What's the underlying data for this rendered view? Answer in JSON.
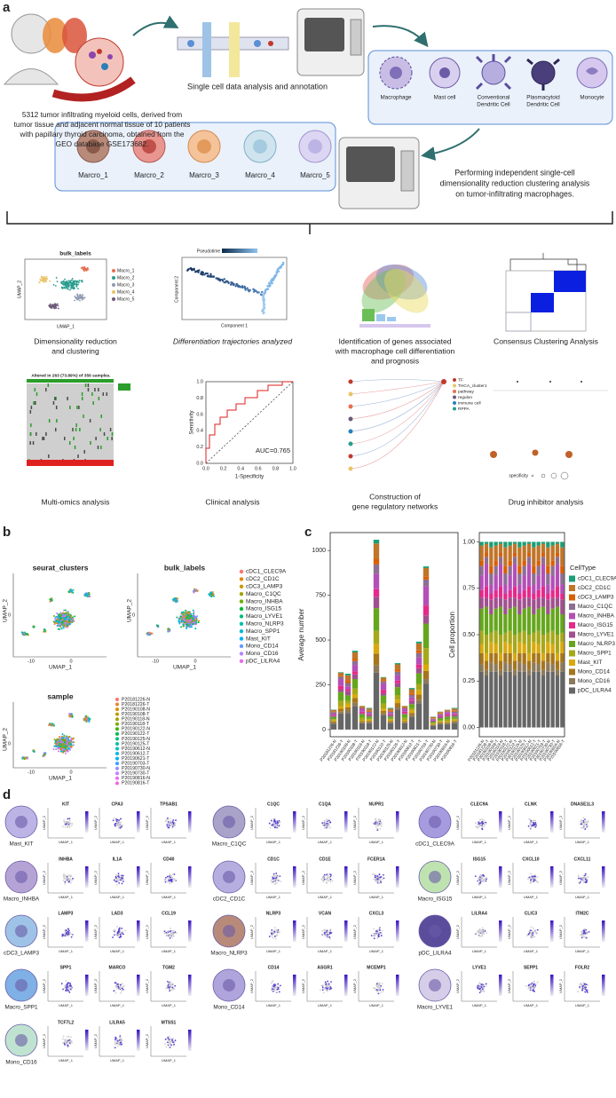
{
  "panel_labels": {
    "a": "a",
    "b": "b",
    "c": "c",
    "d": "d"
  },
  "workflow": {
    "source_text": [
      "5312 tumor infiltrating myeloid cells, derived from",
      "tumor tissue and adjacent normal tissue of 10 patients",
      "with papillary thyroid carcinoma, obtained from the",
      "GEO database GSE173682."
    ],
    "step1_caption": "Single cell data analysis and annotation",
    "cell_types": [
      [
        "Macrophage"
      ],
      [
        "Mast cell"
      ],
      [
        "Conventional",
        "Dendritic Cell"
      ],
      [
        "Plasmacytoid",
        "Dendritic Cell"
      ],
      [
        "Monocyte"
      ]
    ],
    "macro_clusters": [
      "Marcro_1",
      "Marcro_2",
      "Marcro_3",
      "Marcro_4",
      "Marcro_5"
    ],
    "step2_caption": [
      "Performing independent single-cell",
      "dimensionality reduction clustering analysis",
      "on tumor-infiltrating macrophages."
    ]
  },
  "analyses": {
    "captions": [
      [
        "Dimensionality reduction",
        "and clustering"
      ],
      [
        "Differentiation trajectories analyzed"
      ],
      [
        "Identification of genes associated",
        "with macrophage cell differentiation",
        "and prognosis"
      ],
      [
        "Consensus Clustering Analysis"
      ],
      [
        "Multi-omics analysis"
      ],
      [
        "Clinical analysis"
      ],
      [
        "Construction of",
        "gene regulatory networks"
      ],
      [
        "Drug inhibitor analysis"
      ]
    ],
    "umap_title": "bulk_labels",
    "umap_legend": [
      "Macro_1",
      "Macro_2",
      "Macro_3",
      "Macro_4",
      "Macro_5"
    ],
    "umap_x": "UMAP_1",
    "umap_y": "UMAP_2",
    "pseudotime": "Pseudotime",
    "component_x": "Component 1",
    "component_y": "Component 2",
    "oncoprint_title": "Altered in 263 (73.89%) of 356 samples.",
    "roc_auc": "AUC=0.765",
    "roc_x": "1-Specificity",
    "roc_y": "Sensitivity",
    "roc_ticks": [
      "0.0",
      "0.2",
      "0.4",
      "0.6",
      "0.8",
      "1.0"
    ],
    "network_legend": [
      "TF",
      "THCA_cluster1",
      "pathway",
      "regulon",
      "immune cell",
      "RPPA"
    ],
    "drug_legend": "specificity"
  },
  "panel_b": {
    "titles": [
      "seurat_clusters",
      "bulk_labels",
      "sample"
    ],
    "x_label": "UMAP_1",
    "y_label": "UMAP_2",
    "xticks": [
      "-10",
      "0"
    ],
    "yticks": [
      "0"
    ],
    "label_colors": [
      "#f8766d",
      "#e58700",
      "#c99800",
      "#a3a500",
      "#6bb100",
      "#00ba38",
      "#00bf7d",
      "#00c0af",
      "#00bcd8",
      "#00b0f6",
      "#619cff",
      "#b983ff",
      "#e76bf3"
    ],
    "sample_colors": [
      "#f8766d",
      "#ea8331",
      "#d89000",
      "#c09b00",
      "#a3a500",
      "#7cae00",
      "#39b600",
      "#00bb4e",
      "#00bf7d",
      "#00c1a3",
      "#00bfc4",
      "#00bae0",
      "#00b0f6",
      "#35a2ff",
      "#9590ff",
      "#c77cff",
      "#e76bf3",
      "#fa62db"
    ]
  },
  "chart_data": [
    {
      "type": "bar",
      "stacked": true,
      "ylabel": "Average number",
      "categories": [
        "P20181226-N",
        "P20181226-T",
        "P20190108-N",
        "P20190108-T",
        "P20190118-N",
        "P20190118-T",
        "P20190122-N",
        "P20190122-T",
        "P20190125-N",
        "P20190125-T",
        "P20190612-N",
        "P20190612-T",
        "P20190621-T",
        "P20190703-T",
        "P20190730-N",
        "P20190730-T",
        "P20190816-N",
        "P20190816-T"
      ],
      "ylim": [
        -40,
        1100
      ],
      "yticks": [
        0,
        250,
        500,
        750,
        1000
      ],
      "series": [
        {
          "color": "#1b9e77",
          "values": [
            2,
            3,
            9,
            9,
            1,
            4,
            21,
            3,
            4,
            7,
            1,
            7,
            10,
            9,
            2,
            2,
            1,
            4
          ]
        },
        {
          "color": "#c0752a",
          "values": [
            9,
            16,
            31,
            35,
            7,
            12,
            85,
            15,
            12,
            30,
            7,
            23,
            39,
            46,
            7,
            8,
            6,
            12
          ]
        },
        {
          "color": "#d95f02",
          "values": [
            3,
            6,
            12,
            13,
            3,
            5,
            32,
            6,
            5,
            11,
            3,
            9,
            15,
            18,
            3,
            3,
            2,
            5
          ]
        },
        {
          "color": "#8d6f93",
          "values": [
            6,
            13,
            19,
            22,
            5,
            7,
            53,
            12,
            7,
            19,
            5,
            14,
            25,
            36,
            4,
            5,
            4,
            7
          ]
        },
        {
          "color": "#b44fb8",
          "values": [
            9,
            38,
            16,
            35,
            16,
            6,
            85,
            35,
            6,
            30,
            16,
            12,
            39,
            109,
            4,
            8,
            13,
            6
          ]
        },
        {
          "color": "#e7298a",
          "values": [
            4,
            19,
            9,
            18,
            8,
            4,
            42,
            17,
            4,
            15,
            8,
            7,
            20,
            55,
            2,
            4,
            7,
            4
          ]
        },
        {
          "color": "#a0508f",
          "values": [
            7,
            16,
            25,
            26,
            7,
            10,
            64,
            15,
            10,
            22,
            7,
            18,
            29,
            46,
            6,
            6,
            6,
            10
          ]
        },
        {
          "color": "#66a61e",
          "values": [
            13,
            48,
            31,
            53,
            20,
            12,
            127,
            44,
            12,
            44,
            20,
            23,
            59,
            137,
            7,
            12,
            17,
            12
          ]
        },
        {
          "color": "#a6a81a",
          "values": [
            8,
            32,
            16,
            31,
            13,
            6,
            74,
            29,
            6,
            26,
            13,
            12,
            34,
            91,
            4,
            7,
            11,
            6
          ]
        },
        {
          "color": "#d9a90c",
          "values": [
            6,
            13,
            19,
            22,
            5,
            7,
            53,
            12,
            7,
            19,
            5,
            14,
            25,
            36,
            4,
            5,
            4,
            7
          ]
        },
        {
          "color": "#a6761d",
          "values": [
            7,
            16,
            16,
            26,
            7,
            6,
            64,
            15,
            6,
            22,
            7,
            12,
            29,
            46,
            4,
            6,
            6,
            6
          ]
        },
        {
          "color": "#8c7a5c",
          "values": [
            4,
            10,
            16,
            18,
            4,
            6,
            42,
            9,
            6,
            15,
            4,
            12,
            20,
            27,
            4,
            4,
            3,
            6
          ]
        },
        {
          "color": "#666666",
          "values": [
            33,
            90,
            93,
            132,
            36,
            36,
            318,
            81,
            36,
            111,
            36,
            69,
            147,
            255,
            21,
            30,
            31,
            36
          ]
        }
      ]
    },
    {
      "type": "bar",
      "stacked": true,
      "ylabel": "Cell proportion",
      "legend_title": "CellType",
      "legend": "right",
      "categories": [
        "P20181226-N",
        "P20181226-T",
        "P20190108-N",
        "P20190108-T",
        "P20190118-N",
        "P20190118-T",
        "P20190122-N",
        "P20190122-T",
        "P20190125-N",
        "P20190125-T",
        "P20190612-N",
        "P20190612-T",
        "P20190621-T",
        "P20190703-T",
        "P20190730-N",
        "P20190730-T",
        "P20190816-N",
        "P20190816-T"
      ],
      "ylim": [
        -0.05,
        1.05
      ],
      "yticks": [
        {
          "value": 0,
          "label": "0.00"
        },
        {
          "value": 0.25,
          "label": "0.25"
        },
        {
          "value": 0.5,
          "label": "0.50"
        },
        {
          "value": 0.75,
          "label": "0.75"
        },
        {
          "value": 1,
          "label": "1.00"
        }
      ],
      "series": [
        {
          "name": "cDC1_CLEC9A",
          "color": "#1b9e77",
          "values": [
            0.02,
            0.01,
            0.03,
            0.02,
            0.01,
            0.03,
            0.02,
            0.01,
            0.03,
            0.02,
            0.01,
            0.03,
            0.02,
            0.01,
            0.03,
            0.02,
            0.01,
            0.03
          ]
        },
        {
          "name": "cDC2_CD1C",
          "color": "#c0752a",
          "values": [
            0.08,
            0.05,
            0.1,
            0.08,
            0.05,
            0.1,
            0.08,
            0.05,
            0.1,
            0.08,
            0.05,
            0.1,
            0.08,
            0.05,
            0.1,
            0.08,
            0.05,
            0.1
          ]
        },
        {
          "name": "cDC3_LAMP3",
          "color": "#d95f02",
          "values": [
            0.03,
            0.02,
            0.04,
            0.03,
            0.02,
            0.04,
            0.03,
            0.02,
            0.04,
            0.03,
            0.02,
            0.04,
            0.03,
            0.02,
            0.04,
            0.03,
            0.02,
            0.04
          ]
        },
        {
          "name": "Macro_C1QC",
          "color": "#8d6f93",
          "values": [
            0.05,
            0.04,
            0.06,
            0.05,
            0.04,
            0.06,
            0.05,
            0.04,
            0.06,
            0.05,
            0.04,
            0.06,
            0.05,
            0.04,
            0.06,
            0.05,
            0.04,
            0.06
          ]
        },
        {
          "name": "Macro_INHBA",
          "color": "#b44fb8",
          "values": [
            0.08,
            0.12,
            0.05,
            0.08,
            0.12,
            0.05,
            0.08,
            0.12,
            0.05,
            0.08,
            0.12,
            0.05,
            0.08,
            0.12,
            0.05,
            0.08,
            0.12,
            0.05
          ]
        },
        {
          "name": "Macro_ISG15",
          "color": "#e7298a",
          "values": [
            0.04,
            0.06,
            0.03,
            0.04,
            0.06,
            0.03,
            0.04,
            0.06,
            0.03,
            0.04,
            0.06,
            0.03,
            0.04,
            0.06,
            0.03,
            0.04,
            0.06,
            0.03
          ]
        },
        {
          "name": "Macro_LYVE1",
          "color": "#a0508f",
          "values": [
            0.06,
            0.05,
            0.08,
            0.06,
            0.05,
            0.08,
            0.06,
            0.05,
            0.08,
            0.06,
            0.05,
            0.08,
            0.06,
            0.05,
            0.08,
            0.06,
            0.05,
            0.08
          ]
        },
        {
          "name": "Macro_NLRP3",
          "color": "#66a61e",
          "values": [
            0.12,
            0.15,
            0.1,
            0.12,
            0.15,
            0.1,
            0.12,
            0.15,
            0.1,
            0.12,
            0.15,
            0.1,
            0.12,
            0.15,
            0.1,
            0.12,
            0.15,
            0.1
          ]
        },
        {
          "name": "Macro_SPP1",
          "color": "#a6a81a",
          "values": [
            0.07,
            0.1,
            0.05,
            0.07,
            0.1,
            0.05,
            0.07,
            0.1,
            0.05,
            0.07,
            0.1,
            0.05,
            0.07,
            0.1,
            0.05,
            0.07,
            0.1,
            0.05
          ]
        },
        {
          "name": "Mast_KIT",
          "color": "#d9a90c",
          "values": [
            0.05,
            0.04,
            0.06,
            0.05,
            0.04,
            0.06,
            0.05,
            0.04,
            0.06,
            0.05,
            0.04,
            0.06,
            0.05,
            0.04,
            0.06,
            0.05,
            0.04,
            0.06
          ]
        },
        {
          "name": "Mono_CD14",
          "color": "#a6761d",
          "values": [
            0.06,
            0.05,
            0.05,
            0.06,
            0.05,
            0.05,
            0.06,
            0.05,
            0.05,
            0.06,
            0.05,
            0.05,
            0.06,
            0.05,
            0.05,
            0.06,
            0.05,
            0.05
          ]
        },
        {
          "name": "Mono_CD16",
          "color": "#8c7a5c",
          "values": [
            0.04,
            0.03,
            0.05,
            0.04,
            0.03,
            0.05,
            0.04,
            0.03,
            0.05,
            0.04,
            0.03,
            0.05,
            0.04,
            0.03,
            0.05,
            0.04,
            0.03,
            0.05
          ]
        },
        {
          "name": "pDC_LILRA4",
          "color": "#666666",
          "values": [
            0.3,
            0.28,
            0.3,
            0.3,
            0.28,
            0.3,
            0.3,
            0.28,
            0.3,
            0.3,
            0.28,
            0.3,
            0.3,
            0.28,
            0.3,
            0.3,
            0.28,
            0.3
          ]
        }
      ]
    }
  ],
  "panel_d": {
    "x_label": "UMAP_1",
    "y_label": "UMAP_2",
    "cells": [
      {
        "name": "Mast_KIT",
        "genes": [
          "KIT",
          "CPA3",
          "TPSAB1"
        ]
      },
      {
        "name": "Macro_C1QC",
        "genes": [
          "C1QC",
          "C1QA",
          "NUPR1"
        ]
      },
      {
        "name": "cDC1_CLEC9A",
        "genes": [
          "CLEC9A",
          "CLNK",
          "DNASE1L3"
        ]
      },
      {
        "name": "Macro_INHBA",
        "genes": [
          "INHBA",
          "IL1A",
          "CD40"
        ]
      },
      {
        "name": "cDC2_CD1C",
        "genes": [
          "CD1C",
          "CD1E",
          "FCER1A"
        ]
      },
      {
        "name": "Macro_ISG15",
        "genes": [
          "ISG15",
          "CXCL10",
          "CXCL11"
        ]
      },
      {
        "name": "cDC3_LAMP3",
        "genes": [
          "LAMP3",
          "LAD3",
          "CCL19"
        ]
      },
      {
        "name": "Macro_NLRP3",
        "genes": [
          "NLRP3",
          "VCAN",
          "CXCL3"
        ]
      },
      {
        "name": "pDC_LILRA4",
        "genes": [
          "LILRA4",
          "CLIC3",
          "ITM2C"
        ]
      },
      {
        "name": "Macro_SPP1",
        "genes": [
          "SPP1",
          "MARCO",
          "TGM2"
        ]
      },
      {
        "name": "Mono_CD14",
        "genes": [
          "CD14",
          "ASGR1",
          "MCEMP1"
        ]
      },
      {
        "name": "Macro_LYVE1",
        "genes": [
          "LYVE1",
          "SEPP1",
          "FOLR2"
        ]
      },
      {
        "name": "Mono_CD16",
        "genes": [
          "TCF7L2",
          "LILRA5",
          "MTSS1"
        ]
      }
    ]
  }
}
